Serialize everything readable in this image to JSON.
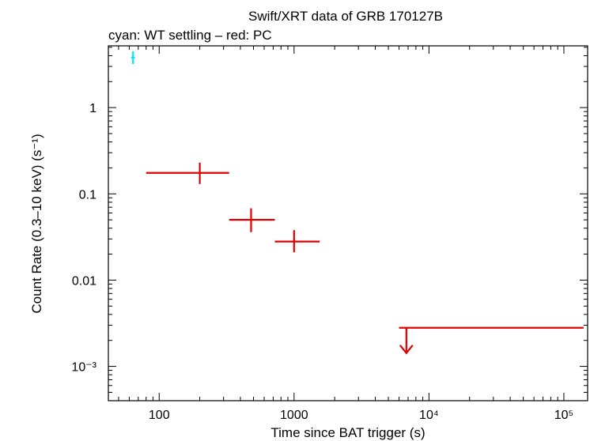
{
  "chart_data": {
    "type": "scatter",
    "title": "Swift/XRT data of GRB 170127B",
    "subtitle": "cyan: WT settling – red: PC",
    "xlabel": "Time since BAT trigger (s)",
    "ylabel": "Count Rate (0.3–10 keV) (s⁻¹)",
    "xscale": "log",
    "yscale": "log",
    "xlim": [
      42,
      150000
    ],
    "ylim": [
      0.0004,
      5.2
    ],
    "x_ticks": [
      {
        "value": 100,
        "label": "100"
      },
      {
        "value": 1000,
        "label": "1000"
      },
      {
        "value": 10000,
        "label": "10⁴"
      },
      {
        "value": 100000,
        "label": "10⁵"
      }
    ],
    "y_ticks": [
      {
        "value": 0.001,
        "label": "10⁻³"
      },
      {
        "value": 0.01,
        "label": "0.01"
      },
      {
        "value": 0.1,
        "label": "0.1"
      },
      {
        "value": 1,
        "label": "1"
      }
    ],
    "grid": false,
    "series": [
      {
        "color": "#00e5ff",
        "points": [
          {
            "x": 64,
            "xlo": 62,
            "xhi": 66,
            "y": 3.8,
            "ylo": 3.2,
            "yhi": 4.5
          }
        ]
      },
      {
        "color": "#e00000",
        "points": [
          {
            "x": 200,
            "xlo": 80,
            "xhi": 330,
            "y": 0.175,
            "ylo": 0.13,
            "yhi": 0.23
          },
          {
            "x": 480,
            "xlo": 330,
            "xhi": 720,
            "y": 0.05,
            "ylo": 0.036,
            "yhi": 0.068
          },
          {
            "x": 1000,
            "xlo": 720,
            "xhi": 1550,
            "y": 0.028,
            "ylo": 0.021,
            "yhi": 0.038
          }
        ],
        "upper_limits": [
          {
            "x": 6800,
            "xlo": 6000,
            "xhi": 140000,
            "y": 0.0028
          }
        ]
      }
    ]
  }
}
